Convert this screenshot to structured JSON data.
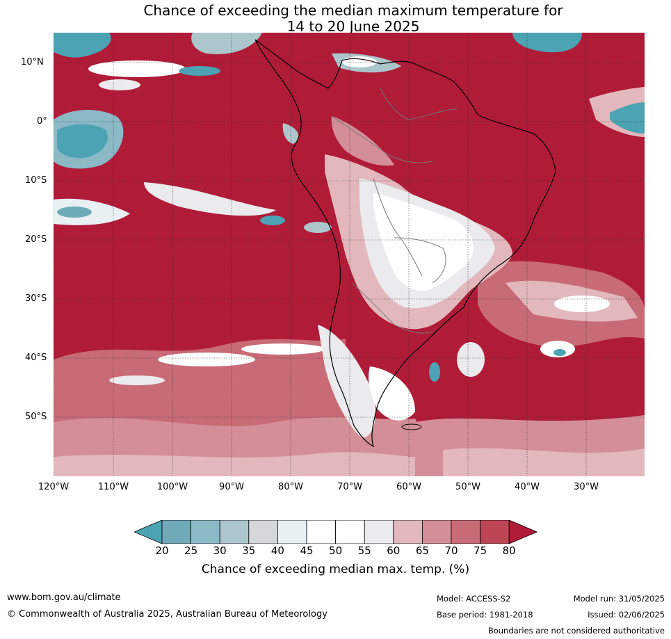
{
  "title_line1": "Chance of exceeding the median maximum temperature for",
  "title_line2": "14 to 20 June 2025",
  "lat_labels": [
    "10°N",
    "0°",
    "10°S",
    "20°S",
    "30°S",
    "40°S",
    "50°S"
  ],
  "lon_labels": [
    "120°W",
    "110°W",
    "100°W",
    "90°W",
    "80°W",
    "70°W",
    "60°W",
    "50°W",
    "40°W",
    "30°W"
  ],
  "colorbar": {
    "label": "Chance of exceeding median max. temp. (%)",
    "ticks": [
      "20",
      "25",
      "30",
      "35",
      "40",
      "45",
      "50",
      "55",
      "60",
      "65",
      "70",
      "75",
      "80"
    ],
    "colors": [
      "#4ba3b3",
      "#6eaab7",
      "#8bb9c6",
      "#acc6cc",
      "#d5d8d9",
      "#e9f0f3",
      "#ffffff",
      "#ffffff",
      "#ebeaec",
      "#e2b8bd",
      "#d48e97",
      "#c86b76",
      "#be4556",
      "#b01b38"
    ]
  },
  "footer": {
    "url": "www.bom.gov.au/climate",
    "copyright": "© Commonwealth of Australia 2025, Australian Bureau of Meteorology",
    "model": "Model: ACCESS-S2",
    "base_period": "Base period: 1981-2018",
    "model_run": "Model run: 31/05/2025",
    "issued": "Issued: 02/06/2025",
    "disclaimer": "Boundaries are not considered authoritative"
  }
}
